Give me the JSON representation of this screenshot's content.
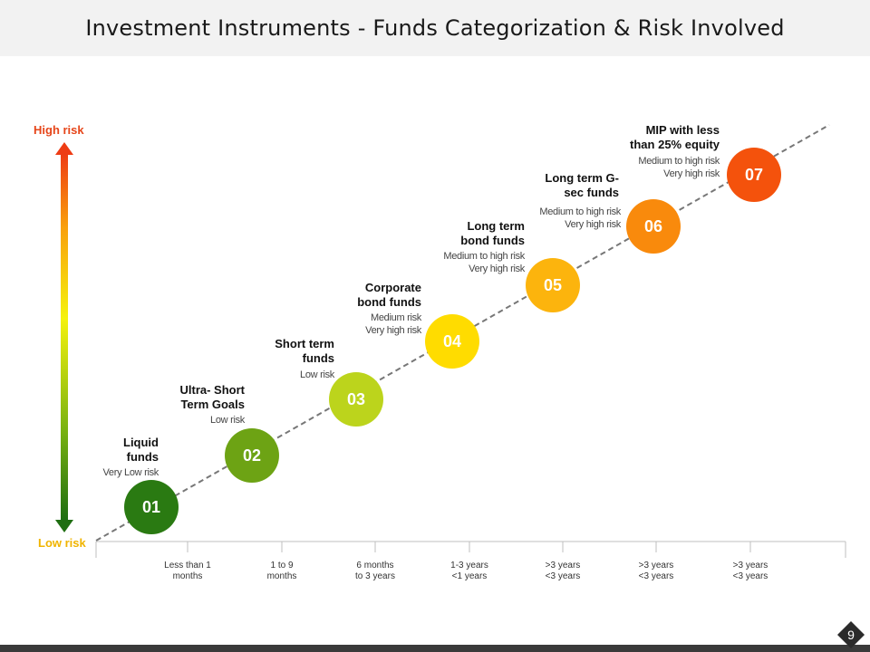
{
  "title": "Investment Instruments - Funds Categorization & Risk Involved",
  "risk_axis": {
    "high": "High risk",
    "low": "Low risk"
  },
  "items": [
    {
      "num": "01",
      "title": "Liquid\nfunds",
      "risk": "Very Low risk",
      "color": "#2a7a12"
    },
    {
      "num": "02",
      "title": "Ultra- Short\nTerm Goals",
      "risk": "Low risk",
      "color": "#6da314"
    },
    {
      "num": "03",
      "title": "Short term\nfunds",
      "risk": "Low risk",
      "color": "#bcd41c"
    },
    {
      "num": "04",
      "title": "Corporate\nbond funds",
      "risk": "Medium risk\nVery high risk",
      "color": "#ffdc00"
    },
    {
      "num": "05",
      "title": "Long term\nbond funds",
      "risk": "Medium to high risk\nVery high risk",
      "color": "#fcb40d"
    },
    {
      "num": "06",
      "title": "Long term G-\nsec funds",
      "risk": "Medium to high risk\nVery high risk",
      "color": "#f98a0c"
    },
    {
      "num": "07",
      "title": "MIP with less\nthan 25% equity",
      "risk": "Medium to high risk\nVery high risk",
      "color": "#f4520c"
    }
  ],
  "time_ticks": [
    "Less than 1\nmonths",
    "1 to 9\nmonths",
    "6 months\nto 3 years",
    "1-3 years\n<1 years",
    ">3 years\n<3 years",
    ">3 years\n<3 years",
    ">3 years\n<3 years"
  ],
  "page_number": "9"
}
